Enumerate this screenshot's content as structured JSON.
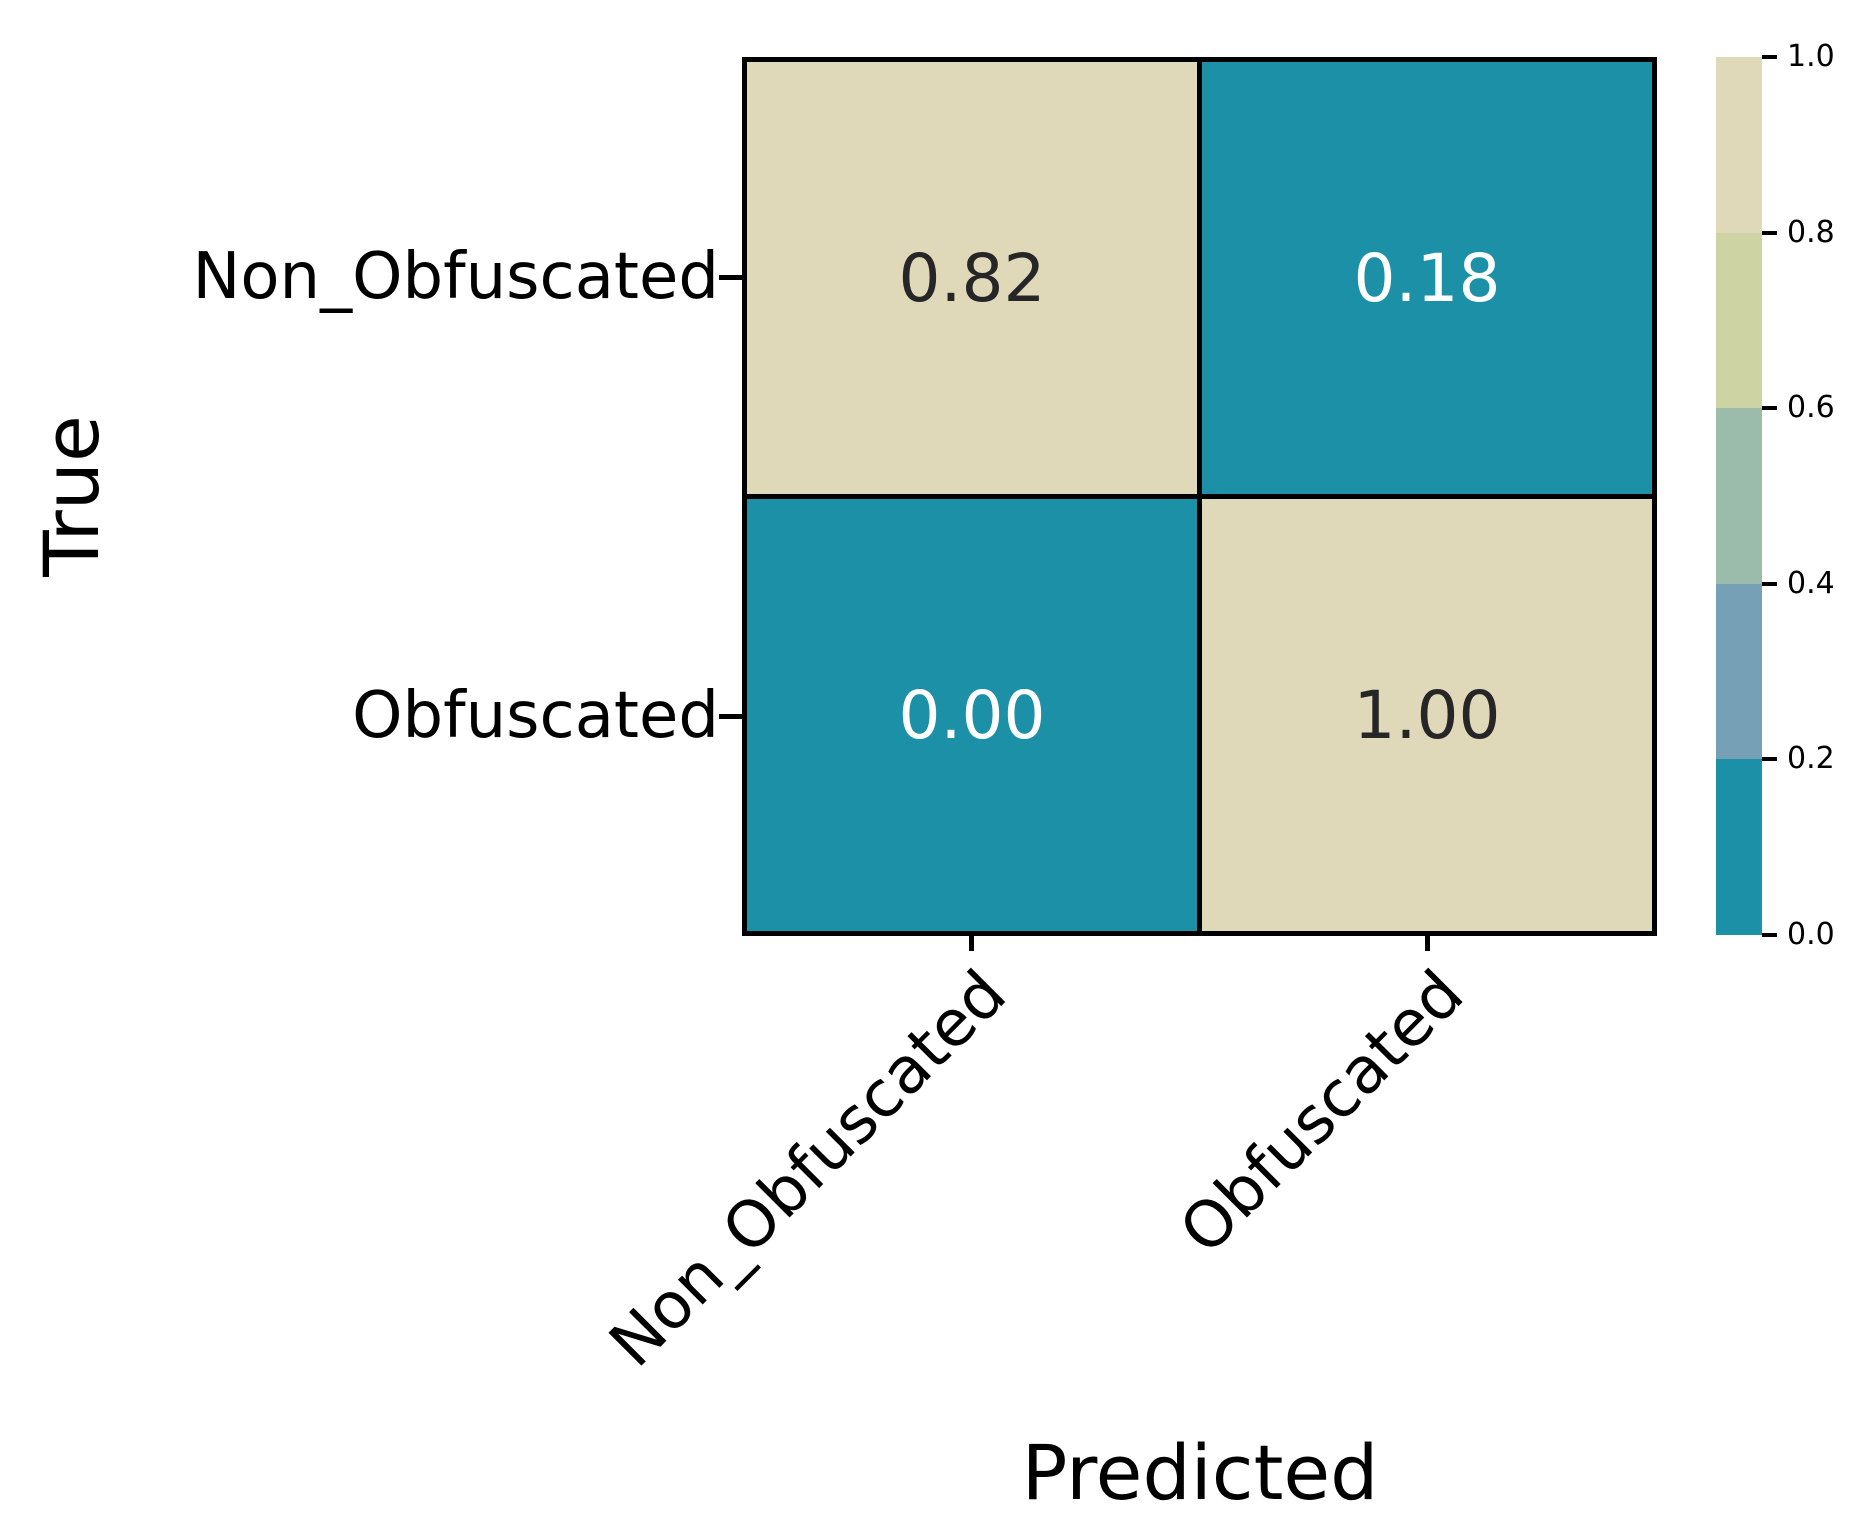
{
  "chart_data": {
    "type": "heatmap",
    "subtype": "confusion-matrix",
    "title": "",
    "xlabel": "Predicted",
    "ylabel": "True",
    "x_categories": [
      "Non_Obfuscated",
      "Obfuscated"
    ],
    "y_categories": [
      "Non_Obfuscated",
      "Obfuscated"
    ],
    "values": [
      [
        0.82,
        0.18
      ],
      [
        0.0,
        1.0
      ]
    ],
    "cells": [
      {
        "row": "Non_Obfuscated",
        "col": "Non_Obfuscated",
        "value": 0.82,
        "label": "0.82",
        "bg": "#dfd9ba",
        "fg": "#262626"
      },
      {
        "row": "Non_Obfuscated",
        "col": "Obfuscated",
        "value": 0.18,
        "label": "0.18",
        "bg": "#1b90a6",
        "fg": "#ffffff"
      },
      {
        "row": "Obfuscated",
        "col": "Non_Obfuscated",
        "value": 0.0,
        "label": "0.00",
        "bg": "#1b90a6",
        "fg": "#ffffff"
      },
      {
        "row": "Obfuscated",
        "col": "Obfuscated",
        "value": 1.0,
        "label": "1.00",
        "bg": "#dfd9ba",
        "fg": "#262626"
      }
    ],
    "grid_line_color": "#000000",
    "background_color": "#ffffff",
    "legend_position": "right",
    "colorbar": {
      "range": [
        0.0,
        1.0
      ],
      "tick_labels": [
        "1.0",
        "0.8",
        "0.6",
        "0.4",
        "0.2",
        "0.0"
      ],
      "band_colors_top_to_bottom": [
        "#dfd9ba",
        "#cdd3a3",
        "#9bbcab",
        "#75a0b5",
        "#1b90a6"
      ],
      "band_edges": [
        0.0,
        0.2,
        0.4,
        0.6,
        0.8,
        1.0
      ]
    }
  }
}
